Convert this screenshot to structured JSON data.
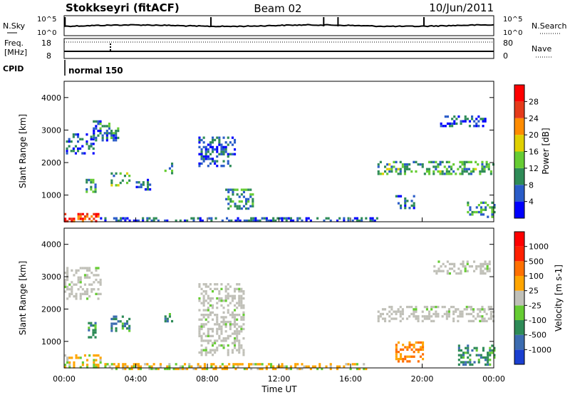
{
  "header": {
    "station": "Stokkseyri (fitACF)",
    "beam": "Beam 02",
    "date": "10/Jun/2011"
  },
  "noise_panel": {
    "left_label": "N.Sky",
    "right_label": "N.Search",
    "left_ticks": [
      "10^5",
      "10^0"
    ],
    "right_ticks": [
      "10^5",
      "10^0"
    ]
  },
  "freq_panel": {
    "label_line1": "Freq.",
    "label_line2": "[MHz]",
    "left_ticks": [
      "18",
      "8"
    ],
    "right_label": "Nave",
    "right_ticks": [
      "80",
      "0"
    ]
  },
  "cpid": {
    "label": "CPID",
    "value": "normal 150"
  },
  "x_axis": {
    "label": "Time UT",
    "ticks": [
      "00:00",
      "04:00",
      "08:00",
      "12:00",
      "16:00",
      "20:00",
      "00:00"
    ]
  },
  "chart_data": [
    {
      "type": "heatmap",
      "quantity": "Power",
      "xlabel": "Time UT",
      "ylabel": "Slant Range [km]",
      "colorbar_label": "Power [dB]",
      "x_range_hours": [
        0,
        24
      ],
      "y_range_km": [
        180,
        4500
      ],
      "y_ticks": [
        "1000",
        "2000",
        "3000",
        "4000"
      ],
      "colorbar_ticks": [
        "4",
        "8",
        "12",
        "16",
        "20",
        "24",
        "28"
      ],
      "colorbar_colors": [
        "#0000ff",
        "#2a5cc8",
        "#2e8b57",
        "#66cc33",
        "#e0d000",
        "#ff8c00",
        "#e53a1a",
        "#ff0000"
      ],
      "regions": [
        {
          "t": [
            0.1,
            1.7
          ],
          "r": [
            2300,
            2900
          ],
          "level": 0.2
        },
        {
          "t": [
            1.6,
            3.0
          ],
          "r": [
            2700,
            3300
          ],
          "level": 0.25
        },
        {
          "t": [
            1.2,
            1.7
          ],
          "r": [
            1100,
            1500
          ],
          "level": 0.3
        },
        {
          "t": [
            2.6,
            3.6
          ],
          "r": [
            1300,
            1700
          ],
          "level": 0.35
        },
        {
          "t": [
            4.0,
            4.8
          ],
          "r": [
            1200,
            1500
          ],
          "level": 0.2
        },
        {
          "t": [
            5.6,
            6.0
          ],
          "r": [
            1700,
            2000
          ],
          "level": 0.3
        },
        {
          "t": [
            7.5,
            9.5
          ],
          "r": [
            1900,
            2800
          ],
          "level": 0.2
        },
        {
          "t": [
            9.0,
            10.5
          ],
          "r": [
            600,
            1200
          ],
          "level": 0.3
        },
        {
          "t": [
            0.0,
            2.0
          ],
          "r": [
            180,
            450
          ],
          "level": 0.8
        },
        {
          "t": [
            2.0,
            17.5
          ],
          "r": [
            180,
            320
          ],
          "level": 0.2
        },
        {
          "t": [
            17.5,
            24.0
          ],
          "r": [
            1650,
            2050
          ],
          "level": 0.35
        },
        {
          "t": [
            21.0,
            23.5
          ],
          "r": [
            3150,
            3450
          ],
          "level": 0.2
        },
        {
          "t": [
            22.5,
            24.0
          ],
          "r": [
            350,
            800
          ],
          "level": 0.3
        },
        {
          "t": [
            18.5,
            19.5
          ],
          "r": [
            600,
            1000
          ],
          "level": 0.2
        }
      ]
    },
    {
      "type": "heatmap",
      "quantity": "Velocity",
      "xlabel": "Time UT",
      "ylabel": "Slant Range [km]",
      "colorbar_label": "Velocity [m s-1]",
      "x_range_hours": [
        0,
        24
      ],
      "y_range_km": [
        180,
        4500
      ],
      "y_ticks": [
        "1000",
        "2000",
        "3000",
        "4000"
      ],
      "colorbar_ticks": [
        "1000",
        "500",
        "100",
        "25",
        "-25",
        "-100",
        "-500",
        "-1000"
      ],
      "colorbar_colors": [
        "#1a3fd0",
        "#3c6cb0",
        "#2e8b57",
        "#66cc33",
        "#c0c0b8",
        "#ffa500",
        "#ff7000",
        "#ff2000",
        "#ff0000"
      ],
      "regions": [
        {
          "t": [
            0.0,
            2.0
          ],
          "r": [
            2300,
            3300
          ],
          "vel": 0
        },
        {
          "t": [
            1.2,
            1.7
          ],
          "r": [
            1100,
            1600
          ],
          "vel": 1
        },
        {
          "t": [
            2.6,
            3.6
          ],
          "r": [
            1300,
            1800
          ],
          "vel": 2
        },
        {
          "t": [
            5.6,
            6.0
          ],
          "r": [
            1600,
            1950
          ],
          "vel": 1
        },
        {
          "t": [
            7.5,
            10.0
          ],
          "r": [
            600,
            2800
          ],
          "vel": 0
        },
        {
          "t": [
            0.0,
            2.0
          ],
          "r": [
            180,
            600
          ],
          "vel": -1
        },
        {
          "t": [
            2.0,
            17.0
          ],
          "r": [
            180,
            330
          ],
          "vel": -1
        },
        {
          "t": [
            17.5,
            24.0
          ],
          "r": [
            1600,
            2100
          ],
          "vel": 0
        },
        {
          "t": [
            20.5,
            23.8
          ],
          "r": [
            3100,
            3500
          ],
          "vel": 0
        },
        {
          "t": [
            18.5,
            20.0
          ],
          "r": [
            400,
            1000
          ],
          "vel": -2
        },
        {
          "t": [
            22.0,
            24.0
          ],
          "r": [
            300,
            900
          ],
          "vel": 1
        }
      ]
    }
  ]
}
